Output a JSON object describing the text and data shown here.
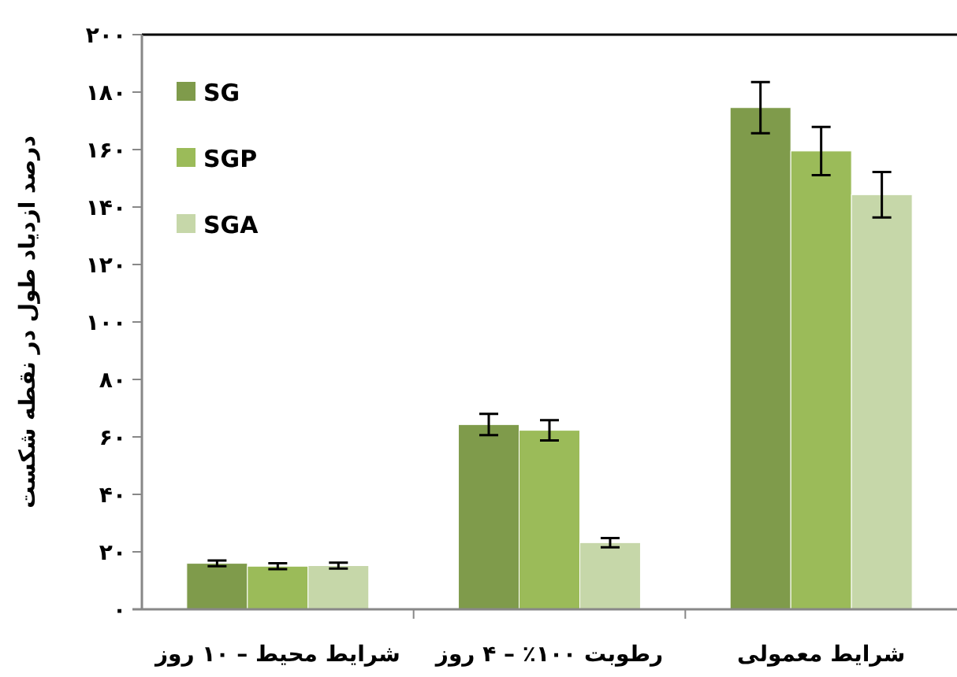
{
  "chart_data": {
    "type": "bar",
    "ylabel": "درصد ازدیاد طول در نقطه شکست",
    "categories": [
      "شرایط محیط – ۱۰ روز",
      "رطوبت ۱۰۰٪ – ۴ روز",
      "شرایط معمولی"
    ],
    "series": [
      {
        "name": "SG",
        "color": "#7f9b4b",
        "values": [
          16,
          64.3,
          174.6
        ],
        "errors": [
          1,
          3.7,
          8.9
        ]
      },
      {
        "name": "SGP",
        "color": "#9bbb59",
        "values": [
          15,
          62.3,
          159.5
        ],
        "errors": [
          1,
          3.5,
          8.4
        ]
      },
      {
        "name": "SGA",
        "color": "#c6d7a9",
        "values": [
          15.2,
          23.2,
          144.3
        ],
        "errors": [
          1,
          1.6,
          7.9
        ]
      }
    ],
    "ylim": [
      0,
      200
    ],
    "yticks": [
      {
        "value": 0,
        "label": "۰"
      },
      {
        "value": 20,
        "label": "۲۰"
      },
      {
        "value": 40,
        "label": "۴۰"
      },
      {
        "value": 60,
        "label": "۶۰"
      },
      {
        "value": 80,
        "label": "۸۰"
      },
      {
        "value": 100,
        "label": "۱۰۰"
      },
      {
        "value": 120,
        "label": "۱۲۰"
      },
      {
        "value": 140,
        "label": "۱۴۰"
      },
      {
        "value": 160,
        "label": "۱۶۰"
      },
      {
        "value": 180,
        "label": "۱۸۰"
      },
      {
        "value": 200,
        "label": "۲۰۰"
      }
    ],
    "grid": false,
    "legend": "top left"
  }
}
